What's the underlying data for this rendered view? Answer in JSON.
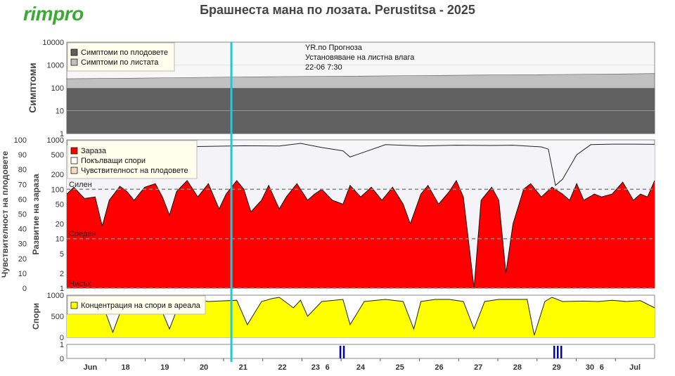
{
  "header": {
    "logo": "rimpro",
    "title": "Брашнеста мана по лозата.  Perustitsa - 2025"
  },
  "colors": {
    "fruit": "#606060",
    "leaf": "#c0c0c0",
    "infection": "#ff0000",
    "germinating": "#f4f4f8",
    "susceptibility": "#f8d8c8",
    "spores": "#ffff00",
    "now_line": "#20c8d8",
    "rain": "#0000aa",
    "legend_bg": "#ffffee"
  },
  "annotation": {
    "line1": "YR.по Прогноза",
    "line2": "Установяване на листна влага",
    "line3": "22-06 7:30"
  },
  "chart_data": [
    {
      "type": "area",
      "ylabel": "Симптоми",
      "yscale": "log",
      "ylim": [
        1,
        10000
      ],
      "yticks": [
        "1",
        "10",
        "100",
        "1000",
        "10000"
      ],
      "series": [
        {
          "name": "Симптоми по плодовете",
          "color": "fruit",
          "x": [
            0,
            8.3
          ],
          "values": [
            100,
            100
          ]
        },
        {
          "name": "Симптоми по листата",
          "color": "leaf",
          "x": [
            0,
            1,
            2,
            3,
            4,
            5,
            6,
            7,
            8,
            8.3
          ],
          "values": [
            250,
            265,
            290,
            310,
            325,
            345,
            365,
            385,
            410,
            420
          ]
        }
      ]
    },
    {
      "type": "area",
      "ylabel_left": "Чувствителност на плодовете",
      "ylabel": "Развитие на зараза",
      "yscale": "log",
      "ylim": [
        1,
        1000
      ],
      "yticks": [
        "1",
        "2",
        "5",
        "10",
        "20",
        "50",
        "100",
        "200",
        "500",
        "1000"
      ],
      "y2ticks": [
        "0",
        "10",
        "20",
        "30",
        "40",
        "50",
        "60",
        "70",
        "80",
        "90",
        "100"
      ],
      "thresholds": [
        {
          "label": "Силен",
          "value": 100
        },
        {
          "label": "Среден",
          "value": 10
        },
        {
          "label": "Нисък",
          "value": 1
        }
      ],
      "series": [
        {
          "name": "Зараза",
          "color": "infection",
          "x": [
            0,
            0.1,
            0.25,
            0.4,
            0.5,
            0.6,
            0.75,
            0.85,
            0.95,
            1.1,
            1.25,
            1.35,
            1.45,
            1.55,
            1.7,
            1.85,
            2.0,
            2.15,
            2.25,
            2.4,
            2.5,
            2.6,
            2.75,
            2.85,
            3.0,
            3.1,
            3.25,
            3.4,
            3.5,
            3.6,
            3.75,
            3.9,
            4.0,
            4.15,
            4.3,
            4.45,
            4.6,
            4.75,
            4.85,
            5.0,
            5.1,
            5.25,
            5.4,
            5.5,
            5.6,
            5.75,
            5.85,
            6.0,
            6.1,
            6.2,
            6.3,
            6.45,
            6.55,
            6.7,
            6.85,
            7.0,
            7.1,
            7.2,
            7.3,
            7.45,
            7.55,
            7.7,
            7.85,
            8.0,
            8.1,
            8.2,
            8.3
          ],
          "values": [
            80,
            110,
            65,
            70,
            18,
            60,
            115,
            90,
            60,
            110,
            130,
            70,
            30,
            90,
            150,
            70,
            130,
            40,
            80,
            150,
            100,
            35,
            60,
            120,
            40,
            70,
            130,
            60,
            80,
            100,
            60,
            50,
            120,
            70,
            110,
            60,
            110,
            50,
            20,
            80,
            120,
            50,
            90,
            150,
            70,
            1,
            60,
            110,
            60,
            2,
            20,
            100,
            130,
            70,
            110,
            80,
            60,
            130,
            60,
            80,
            70,
            80,
            140,
            60,
            80,
            70,
            150
          ]
        },
        {
          "name": "Покълващи спори",
          "color": "germinating",
          "x": [
            0,
            0.3,
            0.7,
            1.0,
            1.5,
            2.0,
            2.5,
            3.0,
            3.3,
            3.6,
            3.9,
            4.0,
            4.5,
            5.0,
            5.5,
            6.0,
            6.3,
            6.7,
            6.8,
            6.9,
            7.0,
            7.2,
            7.4,
            7.7,
            8.0,
            8.3
          ],
          "values": [
            800,
            750,
            780,
            700,
            720,
            740,
            760,
            750,
            850,
            700,
            600,
            450,
            800,
            750,
            780,
            770,
            780,
            720,
            650,
            120,
            160,
            500,
            800,
            820,
            820,
            810
          ]
        },
        {
          "name": "Чувствителност на плодовете",
          "color": "susceptibility",
          "x": [],
          "values": []
        }
      ]
    },
    {
      "type": "area",
      "ylabel": "Спори",
      "ylim": [
        0,
        1000
      ],
      "yticks": [
        "0",
        "500",
        "1000"
      ],
      "series": [
        {
          "name": "Концентрация на спори в ареала",
          "color": "spores",
          "x": [
            0,
            0.3,
            0.5,
            0.65,
            0.8,
            1.0,
            1.3,
            1.45,
            1.6,
            1.8,
            2.0,
            2.4,
            2.55,
            2.75,
            2.9,
            3.0,
            3.2,
            3.3,
            3.4,
            3.6,
            3.9,
            4.0,
            4.2,
            4.5,
            4.75,
            4.9,
            5.0,
            5.2,
            5.4,
            5.6,
            5.75,
            5.9,
            6.1,
            6.3,
            6.5,
            6.6,
            6.75,
            6.85,
            7.0,
            7.3,
            7.5,
            7.7,
            7.9,
            8.1,
            8.3
          ],
          "values": [
            550,
            850,
            800,
            120,
            800,
            850,
            800,
            200,
            850,
            900,
            850,
            880,
            300,
            850,
            920,
            950,
            700,
            880,
            500,
            850,
            900,
            300,
            850,
            900,
            850,
            200,
            850,
            900,
            900,
            850,
            200,
            850,
            900,
            900,
            900,
            50,
            850,
            950,
            850,
            860,
            850,
            880,
            850,
            870,
            700
          ]
        }
      ]
    },
    {
      "type": "bar",
      "ylim": [
        0,
        1
      ],
      "yticks": [
        "0",
        "1"
      ],
      "series": [
        {
          "name": "rain",
          "color": "rain",
          "x": [
            3.85,
            3.9,
            6.87,
            6.92,
            6.97
          ],
          "values": [
            1,
            1,
            1,
            1,
            1
          ]
        }
      ]
    }
  ],
  "xaxis": {
    "ticks": [
      {
        "label": "Jun",
        "pos": 0.6
      },
      {
        "label": "18",
        "pos": 1.5
      },
      {
        "label": "19",
        "pos": 2.5
      },
      {
        "label": "20",
        "pos": 3.5
      },
      {
        "label": "21",
        "pos": 4.5
      },
      {
        "label": "22",
        "pos": 5.5
      },
      {
        "label": "23",
        "pos": 6.35
      },
      {
        "label": "6",
        "pos": 6.65
      },
      {
        "label": "24",
        "pos": 7.5
      },
      {
        "label": "25",
        "pos": 8.5
      },
      {
        "label": "26",
        "pos": 9.5
      },
      {
        "label": "27",
        "pos": 10.5
      },
      {
        "label": "28",
        "pos": 11.5
      },
      {
        "label": "29",
        "pos": 12.5
      },
      {
        "label": "30",
        "pos": 13.35
      },
      {
        "label": "6",
        "pos": 13.65
      },
      {
        "label": "Jul",
        "pos": 14.5
      }
    ],
    "now": 4.2
  },
  "legends": {
    "symptoms": [
      "Симптоми по плодовете",
      "Симптоми по листата"
    ],
    "infection": [
      "Зараза",
      "Покълващи спори",
      "Чувствителност на плодовете"
    ],
    "spores": [
      "Концентрация на спори в ареала"
    ]
  }
}
